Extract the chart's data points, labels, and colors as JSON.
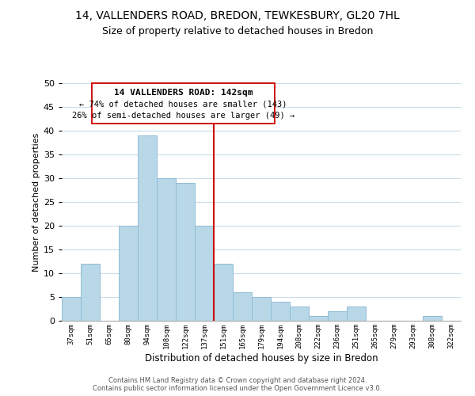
{
  "title": "14, VALLENDERS ROAD, BREDON, TEWKESBURY, GL20 7HL",
  "subtitle": "Size of property relative to detached houses in Bredon",
  "xlabel": "Distribution of detached houses by size in Bredon",
  "ylabel": "Number of detached properties",
  "bin_labels": [
    "37sqm",
    "51sqm",
    "65sqm",
    "80sqm",
    "94sqm",
    "108sqm",
    "122sqm",
    "137sqm",
    "151sqm",
    "165sqm",
    "179sqm",
    "194sqm",
    "208sqm",
    "222sqm",
    "236sqm",
    "251sqm",
    "265sqm",
    "279sqm",
    "293sqm",
    "308sqm",
    "322sqm"
  ],
  "bar_values": [
    5,
    12,
    0,
    20,
    39,
    30,
    29,
    20,
    12,
    6,
    5,
    4,
    3,
    1,
    2,
    3,
    0,
    0,
    0,
    1,
    0
  ],
  "bar_color": "#b8d8e8",
  "bar_edge_color": "#90bcd4",
  "vline_color": "#cc0000",
  "ylim": [
    0,
    50
  ],
  "yticks": [
    0,
    5,
    10,
    15,
    20,
    25,
    30,
    35,
    40,
    45,
    50
  ],
  "annotation_title": "14 VALLENDERS ROAD: 142sqm",
  "annotation_line1": "← 74% of detached houses are smaller (143)",
  "annotation_line2": "26% of semi-detached houses are larger (49) →",
  "annotation_box_color": "#ffffff",
  "annotation_box_edge": "#cc0000",
  "footer_line1": "Contains HM Land Registry data © Crown copyright and database right 2024.",
  "footer_line2": "Contains public sector information licensed under the Open Government Licence v3.0.",
  "bg_color": "#ffffff",
  "grid_color": "#c8dce8",
  "title_fontsize": 10,
  "subtitle_fontsize": 9
}
